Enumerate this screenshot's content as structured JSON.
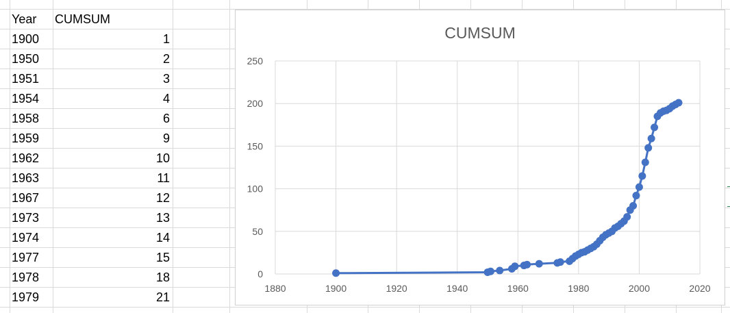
{
  "table": {
    "headers": [
      "Year",
      "CUMSUM"
    ],
    "rows": [
      {
        "year": "1900",
        "cumsum": "1"
      },
      {
        "year": "1950",
        "cumsum": "2"
      },
      {
        "year": "1951",
        "cumsum": "3"
      },
      {
        "year": "1954",
        "cumsum": "4"
      },
      {
        "year": "1958",
        "cumsum": "6"
      },
      {
        "year": "1959",
        "cumsum": "9"
      },
      {
        "year": "1962",
        "cumsum": "10"
      },
      {
        "year": "1963",
        "cumsum": "11"
      },
      {
        "year": "1967",
        "cumsum": "12"
      },
      {
        "year": "1973",
        "cumsum": "13"
      },
      {
        "year": "1974",
        "cumsum": "14"
      },
      {
        "year": "1977",
        "cumsum": "15"
      },
      {
        "year": "1978",
        "cumsum": "18"
      },
      {
        "year": "1979",
        "cumsum": "21"
      }
    ]
  },
  "colors": {
    "series": "#4472c4",
    "gridline": "#d9d9d9",
    "axis_text": "#595959",
    "title_text": "#595959"
  },
  "chart_data": {
    "type": "scatter",
    "title": "CUMSUM",
    "xlabel": "",
    "ylabel": "",
    "xlim": [
      1880,
      2020
    ],
    "ylim": [
      0,
      250
    ],
    "x_ticks": [
      1880,
      1900,
      1920,
      1940,
      1960,
      1980,
      2000,
      2020
    ],
    "y_ticks": [
      0,
      50,
      100,
      150,
      200,
      250
    ],
    "grid": true,
    "legend": "none",
    "lines": true,
    "series": [
      {
        "points": [
          [
            1900,
            1
          ],
          [
            1950,
            2
          ],
          [
            1951,
            3
          ],
          [
            1954,
            4
          ],
          [
            1958,
            6
          ],
          [
            1959,
            9
          ],
          [
            1962,
            10
          ],
          [
            1963,
            11
          ],
          [
            1967,
            12
          ],
          [
            1973,
            13
          ],
          [
            1974,
            14
          ],
          [
            1977,
            15
          ],
          [
            1978,
            18
          ],
          [
            1979,
            21
          ],
          [
            1980,
            23
          ],
          [
            1981,
            25
          ],
          [
            1982,
            26
          ],
          [
            1983,
            28
          ],
          [
            1984,
            30
          ],
          [
            1985,
            32
          ],
          [
            1986,
            35
          ],
          [
            1987,
            39
          ],
          [
            1988,
            43
          ],
          [
            1989,
            46
          ],
          [
            1990,
            48
          ],
          [
            1991,
            50
          ],
          [
            1992,
            54
          ],
          [
            1993,
            56
          ],
          [
            1994,
            59
          ],
          [
            1995,
            62
          ],
          [
            1996,
            67
          ],
          [
            1997,
            75
          ],
          [
            1998,
            80
          ],
          [
            1999,
            92
          ],
          [
            2000,
            102
          ],
          [
            2001,
            115
          ],
          [
            2002,
            131
          ],
          [
            2003,
            148
          ],
          [
            2004,
            159
          ],
          [
            2005,
            172
          ],
          [
            2006,
            185
          ],
          [
            2007,
            189
          ],
          [
            2008,
            191
          ],
          [
            2009,
            192
          ],
          [
            2010,
            194
          ],
          [
            2011,
            197
          ],
          [
            2012,
            199
          ],
          [
            2013,
            201
          ]
        ]
      }
    ]
  }
}
